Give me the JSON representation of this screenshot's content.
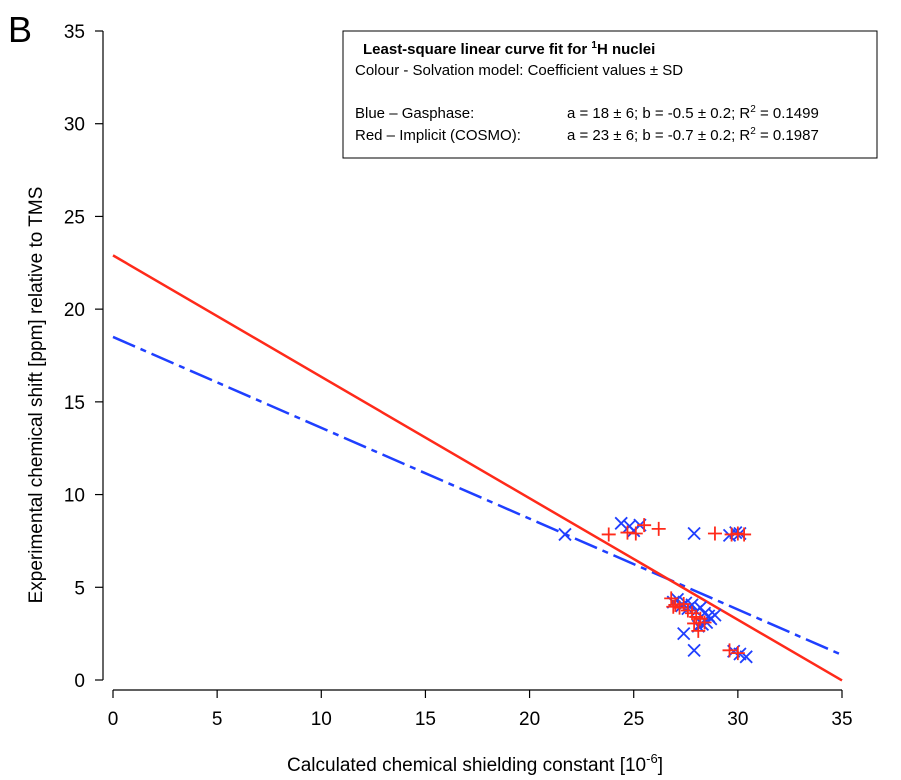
{
  "chart_data": {
    "type": "scatter",
    "panel_label": "B",
    "xlabel": "Calculated chemical shielding constant [10",
    "xlabel_superscript": "-6",
    "xlabel_suffix": "]",
    "ylabel": "Experimental chemical shift [ppm] relative to TMS",
    "xlim": [
      0,
      35
    ],
    "ylim": [
      0,
      35
    ],
    "xticks": [
      0,
      5,
      10,
      15,
      20,
      25,
      30,
      35
    ],
    "yticks": [
      0,
      5,
      10,
      15,
      20,
      25,
      30,
      35
    ],
    "grid": false,
    "legend": {
      "placement": "top-right",
      "title_prefix": "Least-square linear curve fit for ",
      "title_sup": "1",
      "title_suffix": "H nuclei",
      "subtitle": "Colour - Solvation model: Coefficient values ± SD",
      "entries": [
        {
          "label": "Blue – Gasphase:",
          "stats_prefix": "a = 18 ± 6; b = -0.5 ± 0.2; R",
          "stats_sup": "2",
          "stats_suffix": " = 0.1499",
          "color": "#1f3fff"
        },
        {
          "label": "Red –  Implicit (COSMO):",
          "stats_prefix": "a = 23 ± 6; b = -0.7 ± 0.2; R",
          "stats_sup": "2",
          "stats_suffix": " = 0.1987",
          "color": "#ff2a1a"
        }
      ]
    },
    "series": [
      {
        "marker": "x",
        "color": "#1f3fff",
        "fit": {
          "a": 18.5,
          "b": -0.49,
          "x_range": [
            0,
            35
          ],
          "line_style": "dash-dot"
        },
        "points": [
          [
            21.7,
            7.85
          ],
          [
            24.4,
            8.45
          ],
          [
            24.8,
            8.3
          ],
          [
            25.0,
            8.05
          ],
          [
            25.3,
            8.35
          ],
          [
            27.9,
            7.9
          ],
          [
            29.6,
            7.8
          ],
          [
            29.9,
            7.95
          ],
          [
            30.1,
            7.9
          ],
          [
            26.9,
            4.2
          ],
          [
            27.1,
            4.35
          ],
          [
            27.3,
            4.0
          ],
          [
            27.5,
            4.15
          ],
          [
            27.6,
            3.85
          ],
          [
            27.8,
            4.05
          ],
          [
            28.0,
            3.7
          ],
          [
            28.2,
            3.9
          ],
          [
            28.4,
            3.6
          ],
          [
            28.6,
            3.45
          ],
          [
            28.7,
            3.3
          ],
          [
            28.9,
            3.5
          ],
          [
            28.5,
            3.1
          ],
          [
            28.3,
            3.0
          ],
          [
            28.1,
            2.9
          ],
          [
            27.4,
            2.5
          ],
          [
            27.9,
            1.6
          ],
          [
            29.8,
            1.55
          ],
          [
            30.1,
            1.4
          ],
          [
            30.4,
            1.25
          ]
        ]
      },
      {
        "marker": "+",
        "color": "#ff2a1a",
        "fit": {
          "a": 22.9,
          "b": -0.655,
          "x_range": [
            0,
            35
          ],
          "line_style": "solid"
        },
        "points": [
          [
            23.8,
            7.85
          ],
          [
            24.7,
            7.95
          ],
          [
            25.1,
            7.9
          ],
          [
            25.5,
            8.35
          ],
          [
            26.2,
            8.15
          ],
          [
            28.9,
            7.9
          ],
          [
            29.7,
            7.85
          ],
          [
            30.0,
            7.9
          ],
          [
            30.3,
            7.85
          ],
          [
            26.8,
            4.4
          ],
          [
            27.0,
            4.05
          ],
          [
            27.2,
            3.9
          ],
          [
            27.4,
            4.1
          ],
          [
            27.6,
            3.75
          ],
          [
            27.8,
            3.6
          ],
          [
            28.0,
            3.4
          ],
          [
            28.2,
            3.3
          ],
          [
            28.4,
            3.1
          ],
          [
            27.9,
            3.05
          ],
          [
            28.1,
            2.65
          ],
          [
            29.6,
            1.6
          ],
          [
            30.0,
            1.45
          ],
          [
            26.9,
            3.95
          ]
        ]
      }
    ]
  }
}
